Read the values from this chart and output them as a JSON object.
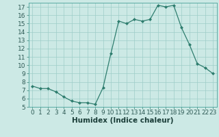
{
  "x": [
    0,
    1,
    2,
    3,
    4,
    5,
    6,
    7,
    8,
    9,
    10,
    11,
    12,
    13,
    14,
    15,
    16,
    17,
    18,
    19,
    20,
    21,
    22,
    23
  ],
  "y": [
    7.5,
    7.2,
    7.2,
    6.8,
    6.2,
    5.7,
    5.5,
    5.5,
    5.3,
    7.3,
    11.4,
    15.3,
    15.0,
    15.5,
    15.3,
    15.5,
    17.2,
    17.0,
    17.2,
    14.5,
    12.5,
    10.2,
    9.7,
    9.0
  ],
  "line_color": "#2e7d6e",
  "marker": "D",
  "marker_size": 2.0,
  "bg_color": "#cce9e5",
  "grid_color": "#9ecdc8",
  "xlabel": "Humidex (Indice chaleur)",
  "ylim": [
    5,
    17.5
  ],
  "xlim": [
    -0.5,
    23.5
  ],
  "yticks": [
    5,
    6,
    7,
    8,
    9,
    10,
    11,
    12,
    13,
    14,
    15,
    16,
    17
  ],
  "xticks": [
    0,
    1,
    2,
    3,
    4,
    5,
    6,
    7,
    8,
    9,
    10,
    11,
    12,
    13,
    14,
    15,
    16,
    17,
    18,
    19,
    20,
    21,
    22,
    23
  ],
  "xlabel_fontsize": 7.5,
  "tick_fontsize": 6.5
}
